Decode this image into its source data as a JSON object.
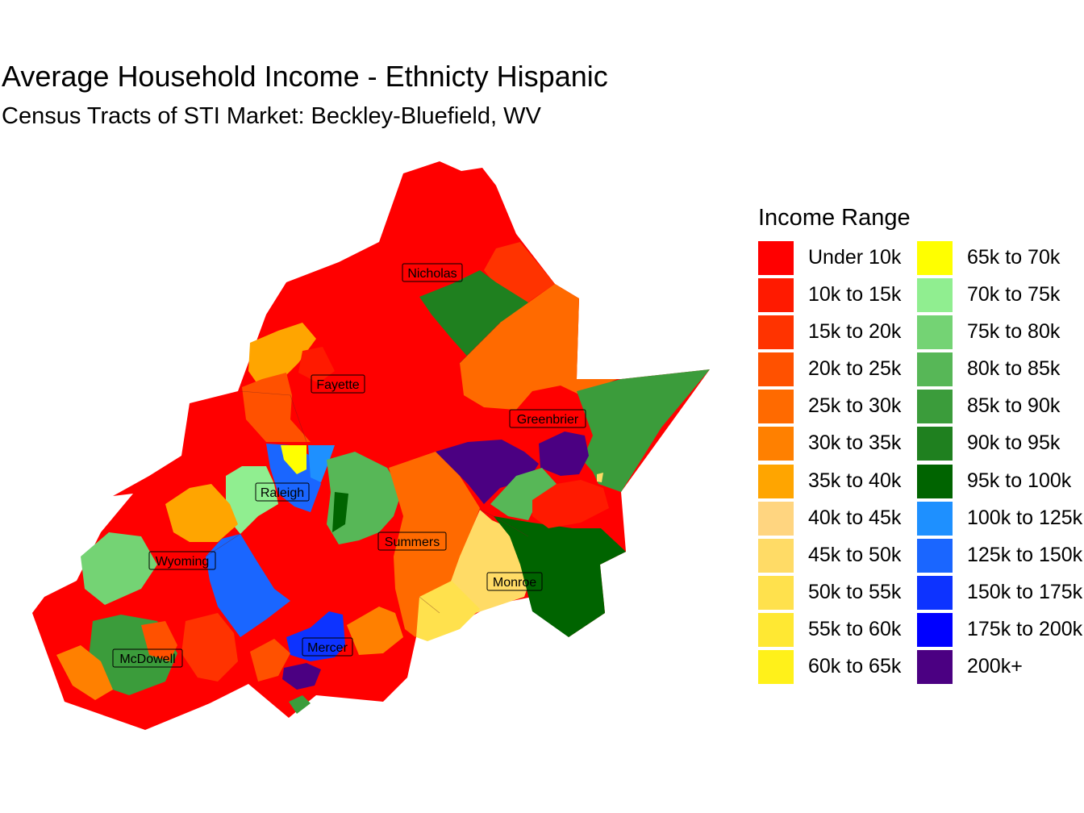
{
  "title": "Average Household Income - Ethnicty Hispanic",
  "subtitle": "Census Tracts of STI Market: Beckley-Bluefield, WV",
  "legend": {
    "title": "Income Range",
    "items": [
      {
        "label": "Under 10k",
        "color": "#FF0000"
      },
      {
        "label": "10k to 15k",
        "color": "#FF1A00"
      },
      {
        "label": "15k to 20k",
        "color": "#FF3300"
      },
      {
        "label": "20k to 25k",
        "color": "#FF5100"
      },
      {
        "label": "25k to 30k",
        "color": "#FF6A00"
      },
      {
        "label": "30k to 35k",
        "color": "#FF8000"
      },
      {
        "label": "35k to 40k",
        "color": "#FFA500"
      },
      {
        "label": "40k to 45k",
        "color": "#FFD580"
      },
      {
        "label": "45k to 50k",
        "color": "#FFDB66"
      },
      {
        "label": "50k to 55k",
        "color": "#FFE14D"
      },
      {
        "label": "55k to 60k",
        "color": "#FFE833"
      },
      {
        "label": "60k to 65k",
        "color": "#FFF11A"
      },
      {
        "label": "65k to 70k",
        "color": "#FFFF00"
      },
      {
        "label": "70k to 75k",
        "color": "#90EE90"
      },
      {
        "label": "75k to 80k",
        "color": "#74D374"
      },
      {
        "label": "80k to 85k",
        "color": "#57B757"
      },
      {
        "label": "85k to 90k",
        "color": "#3B9C3B"
      },
      {
        "label": "90k to 95k",
        "color": "#1F801F"
      },
      {
        "label": "95k to 100k",
        "color": "#006400"
      },
      {
        "label": "100k to 125k",
        "color": "#1E90FF"
      },
      {
        "label": "125k to 150k",
        "color": "#1A66FF"
      },
      {
        "label": "150k to 175k",
        "color": "#0D33FF"
      },
      {
        "label": "175k to 200k",
        "color": "#0000FF"
      },
      {
        "label": "200k+",
        "color": "#4B0082"
      }
    ]
  },
  "counties": [
    {
      "name": "Nicholas"
    },
    {
      "name": "Fayette"
    },
    {
      "name": "Greenbrier"
    },
    {
      "name": "Raleigh"
    },
    {
      "name": "Summers"
    },
    {
      "name": "Wyoming"
    },
    {
      "name": "Monroe"
    },
    {
      "name": "McDowell"
    },
    {
      "name": "Mercer"
    }
  ]
}
